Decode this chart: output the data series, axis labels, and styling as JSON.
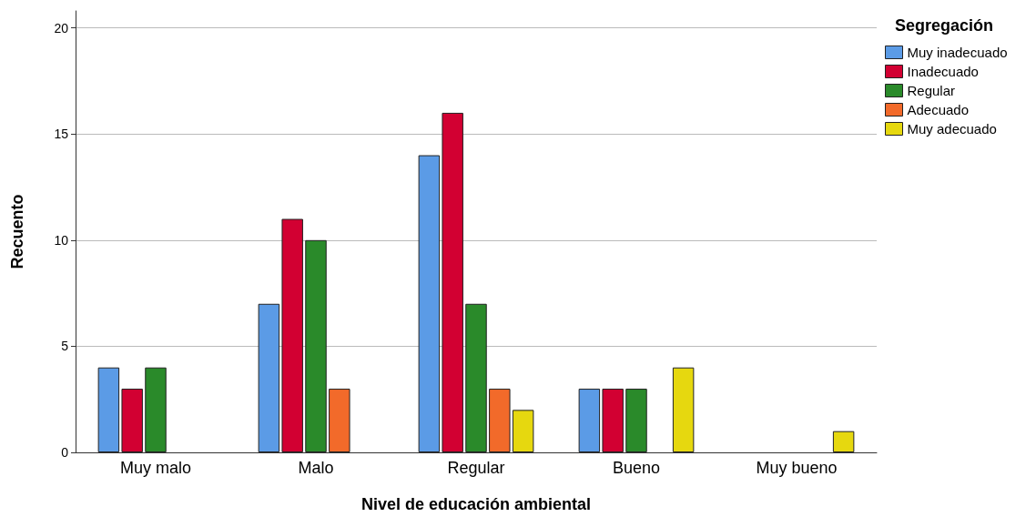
{
  "chart_data": {
    "type": "bar",
    "xlabel": "Nivel de educación ambiental",
    "ylabel": "Recuento",
    "legend_title": "Segregación",
    "categories": [
      "Muy malo",
      "Malo",
      "Regular",
      "Bueno",
      "Muy bueno"
    ],
    "series": [
      {
        "name": "Muy inadecuado",
        "color": "#5b9be6",
        "values": [
          4,
          7,
          14,
          3,
          null
        ]
      },
      {
        "name": "Inadecuado",
        "color": "#d20032",
        "values": [
          3,
          11,
          16,
          3,
          null
        ]
      },
      {
        "name": "Regular",
        "color": "#2a8a2a",
        "values": [
          4,
          10,
          7,
          3,
          null
        ]
      },
      {
        "name": "Adecuado",
        "color": "#f26a2a",
        "values": [
          null,
          3,
          3,
          null,
          null
        ]
      },
      {
        "name": "Muy adecuado",
        "color": "#e6d80f",
        "values": [
          null,
          null,
          2,
          4,
          1
        ]
      }
    ],
    "ylim": [
      0,
      20.8
    ],
    "yticks": [
      0,
      5,
      10,
      15,
      20
    ],
    "grid": "y",
    "legend": "top right"
  }
}
